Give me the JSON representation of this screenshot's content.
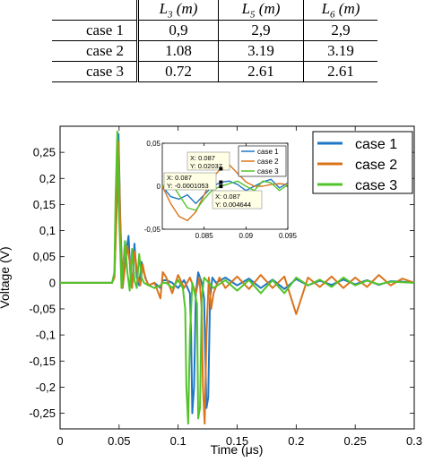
{
  "table": {
    "headers": [
      "",
      "L3 (m)",
      "L5 (m)",
      "L6 (m)"
    ],
    "header_symbols": [
      "L",
      "L",
      "L"
    ],
    "header_subs": [
      "3",
      "5",
      "6"
    ],
    "header_units": [
      "(m)",
      "(m)",
      "(m)"
    ],
    "rows": [
      {
        "label": "case 1",
        "L3": "0,9",
        "L5": "2,9",
        "L6": "2,9"
      },
      {
        "label": "case 2",
        "L3": "1.08",
        "L5": "3.19",
        "L6": "3.19"
      },
      {
        "label": "case 3",
        "L3": "0.72",
        "L5": "2.61",
        "L6": "2.61"
      }
    ]
  },
  "chart_data": [
    {
      "type": "line",
      "xlabel": "Time (μs)",
      "ylabel": "Voltage (V)",
      "xlim": [
        0,
        0.3
      ],
      "ylim": [
        -0.28,
        0.3
      ],
      "xticks": [
        0,
        0.05,
        0.1,
        0.15,
        0.2,
        0.25,
        0.3
      ],
      "xtick_labels": [
        "0",
        "0.05",
        "0.1",
        "0.15",
        "0.2",
        "0.25",
        "0.3"
      ],
      "yticks": [
        -0.25,
        -0.2,
        -0.15,
        -0.1,
        -0.05,
        0,
        0.05,
        0.1,
        0.15,
        0.2,
        0.25
      ],
      "ytick_labels": [
        "-0,25",
        "-0,2",
        "-0,15",
        "-0,1",
        "-0,05",
        "0",
        "0,05",
        "0,1",
        "0,15",
        "0,2",
        "0,25"
      ],
      "grid": false,
      "legend_position": "top-right",
      "series": [
        {
          "name": "case 1",
          "color": "#1f77c4",
          "x": [
            0,
            0.044,
            0.046,
            0.048,
            0.0495,
            0.051,
            0.053,
            0.056,
            0.058,
            0.0595,
            0.061,
            0.063,
            0.065,
            0.067,
            0.069,
            0.071,
            0.073,
            0.075,
            0.08,
            0.085,
            0.087,
            0.09,
            0.095,
            0.1,
            0.105,
            0.11,
            0.111,
            0.112,
            0.1135,
            0.115,
            0.117,
            0.12,
            0.122,
            0.124,
            0.1255,
            0.127,
            0.129,
            0.132,
            0.14,
            0.15,
            0.16,
            0.17,
            0.18,
            0.19,
            0.2,
            0.21,
            0.22,
            0.23,
            0.24,
            0.25,
            0.26,
            0.27,
            0.28,
            0.29,
            0.3
          ],
          "y": [
            0,
            0,
            0.01,
            0.15,
            0.285,
            0.12,
            -0.01,
            0.06,
            0.09,
            0.02,
            -0.01,
            0.075,
            0.01,
            -0.005,
            0.04,
            0.02,
            0.005,
            -0.005,
            0.0,
            -0.01,
            0.0046,
            0.005,
            0.0,
            -0.01,
            0.005,
            -0.02,
            -0.1,
            -0.25,
            -0.2,
            -0.02,
            0.02,
            0.0,
            -0.03,
            -0.24,
            -0.22,
            -0.03,
            0.01,
            0.0,
            0.01,
            -0.005,
            0.008,
            -0.01,
            0.006,
            -0.012,
            0.007,
            -0.005,
            0.004,
            -0.004,
            0.006,
            -0.003,
            0.005,
            -0.004,
            0.003,
            0.002,
            0.0
          ]
        },
        {
          "name": "case 2",
          "color": "#d9741c",
          "x": [
            0,
            0.044,
            0.046,
            0.048,
            0.0495,
            0.051,
            0.053,
            0.057,
            0.059,
            0.061,
            0.063,
            0.066,
            0.068,
            0.07,
            0.072,
            0.075,
            0.08,
            0.085,
            0.087,
            0.09,
            0.095,
            0.1,
            0.105,
            0.11,
            0.115,
            0.118,
            0.12,
            0.121,
            0.1225,
            0.124,
            0.126,
            0.128,
            0.13,
            0.135,
            0.14,
            0.15,
            0.16,
            0.17,
            0.18,
            0.19,
            0.2,
            0.21,
            0.22,
            0.23,
            0.24,
            0.25,
            0.26,
            0.27,
            0.28,
            0.29,
            0.3
          ],
          "y": [
            0,
            0,
            0.01,
            0.14,
            0.27,
            0.11,
            -0.01,
            0.07,
            0.04,
            -0.01,
            0.06,
            0.01,
            -0.005,
            0.035,
            0.01,
            -0.005,
            0.0,
            -0.03,
            0.0204,
            0.01,
            -0.02,
            0.015,
            -0.01,
            0.01,
            -0.02,
            0.01,
            -0.05,
            -0.2,
            -0.27,
            -0.1,
            0.01,
            -0.05,
            -0.02,
            0.01,
            -0.01,
            0.012,
            -0.012,
            0.015,
            -0.01,
            0.012,
            -0.06,
            0.01,
            -0.008,
            0.012,
            -0.01,
            0.01,
            -0.008,
            0.015,
            -0.005,
            0.008,
            0.0
          ]
        },
        {
          "name": "case 3",
          "color": "#52c42a",
          "x": [
            0,
            0.044,
            0.046,
            0.047,
            0.0485,
            0.05,
            0.052,
            0.055,
            0.057,
            0.059,
            0.061,
            0.063,
            0.065,
            0.067,
            0.069,
            0.071,
            0.075,
            0.08,
            0.085,
            0.087,
            0.09,
            0.095,
            0.1,
            0.104,
            0.106,
            0.107,
            0.1085,
            0.11,
            0.112,
            0.114,
            0.116,
            0.117,
            0.1185,
            0.12,
            0.122,
            0.126,
            0.13,
            0.14,
            0.15,
            0.16,
            0.17,
            0.18,
            0.19,
            0.2,
            0.21,
            0.22,
            0.23,
            0.24,
            0.25,
            0.26,
            0.27,
            0.28,
            0.29,
            0.3
          ],
          "y": [
            0,
            0,
            0.02,
            0.16,
            0.29,
            0.13,
            -0.01,
            0.08,
            0.02,
            -0.015,
            0.065,
            0.005,
            -0.01,
            0.055,
            0.01,
            0.0,
            -0.005,
            -0.01,
            -0.005,
            -0.0001,
            0.0,
            -0.01,
            0.005,
            -0.01,
            -0.05,
            -0.2,
            -0.27,
            -0.1,
            0.0,
            -0.02,
            -0.04,
            -0.26,
            -0.24,
            -0.03,
            0.01,
            0.0,
            -0.01,
            0.005,
            -0.015,
            0.005,
            -0.02,
            0.005,
            -0.02,
            0.01,
            -0.005,
            0.006,
            -0.008,
            0.01,
            -0.005,
            0.004,
            -0.003,
            0.002,
            0.001,
            0.0
          ]
        }
      ]
    },
    {
      "type": "line",
      "xlim": [
        0.08,
        0.095
      ],
      "ylim": [
        -0.05,
        0.05
      ],
      "xticks": [
        0.085,
        0.09,
        0.095
      ],
      "xtick_labels": [
        "0.085",
        "0.09",
        "0.095"
      ],
      "yticks": [
        -0.05,
        0,
        0.05
      ],
      "ytick_labels": [
        "-0,05",
        "0",
        "0,05"
      ],
      "legend_position": "top-right",
      "series": [
        {
          "name": "case 1",
          "color": "#1f77c4",
          "x": [
            0.08,
            0.081,
            0.082,
            0.083,
            0.084,
            0.085,
            0.086,
            0.087,
            0.088,
            0.089,
            0.09,
            0.091,
            0.092,
            0.093,
            0.094,
            0.095
          ],
          "y": [
            0.0,
            -0.012,
            -0.015,
            -0.01,
            -0.02,
            -0.01,
            0.0,
            0.0046,
            0.006,
            0.002,
            -0.005,
            0.0,
            0.005,
            0.008,
            -0.002,
            0.004
          ]
        },
        {
          "name": "case 2",
          "color": "#d9741c",
          "x": [
            0.08,
            0.081,
            0.082,
            0.083,
            0.084,
            0.085,
            0.086,
            0.087,
            0.088,
            0.089,
            0.09,
            0.091,
            0.092,
            0.093,
            0.094,
            0.095
          ],
          "y": [
            0.0,
            -0.02,
            -0.035,
            -0.04,
            -0.03,
            -0.01,
            0.01,
            0.0204,
            0.025,
            0.015,
            0.005,
            0.0,
            0.0,
            0.002,
            0.003,
            0.002
          ]
        },
        {
          "name": "case 3",
          "color": "#52c42a",
          "x": [
            0.08,
            0.081,
            0.082,
            0.083,
            0.084,
            0.085,
            0.086,
            0.087,
            0.088,
            0.089,
            0.09,
            0.091,
            0.092,
            0.093,
            0.094,
            0.095
          ],
          "y": [
            0.0,
            0.005,
            -0.01,
            -0.025,
            -0.028,
            -0.015,
            -0.004,
            -0.0001,
            0.003,
            0.006,
            0.0,
            -0.005,
            0.006,
            0.004,
            -0.005,
            0.002
          ]
        }
      ],
      "annotations": [
        {
          "x": 0.087,
          "y": 0.02037,
          "label_x": "X: 0.087",
          "label_y": "Y: 0.02037",
          "series": "case 2"
        },
        {
          "x": 0.087,
          "y": -0.0001053,
          "label_x": "X: 0.087",
          "label_y": "Y: -0.0001053",
          "series": "case 3"
        },
        {
          "x": 0.087,
          "y": 0.004644,
          "label_x": "X: 0.087",
          "label_y": "Y: 0.004644",
          "series": "case 1"
        }
      ]
    }
  ]
}
